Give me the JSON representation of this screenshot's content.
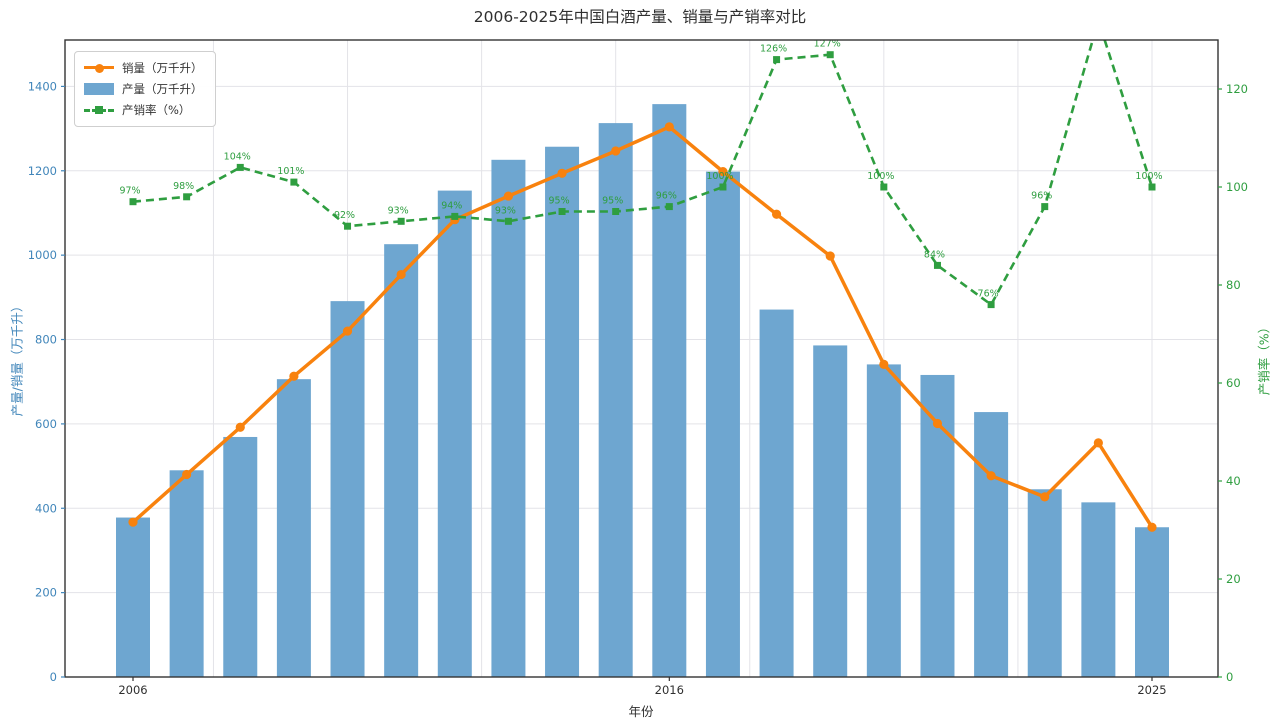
{
  "title": "2006-2025年中国白酒产量、销量与产销率对比",
  "chart_data": {
    "type": "bar",
    "subtype": "dual-axis bar + two lines",
    "title": "2006-2025年中国白酒产量、销量与产销率对比",
    "xlabel": "年份",
    "ylabel_left": "产量/销量（万千升）",
    "ylabel_right": "产销率（%）",
    "x": [
      2006,
      2007,
      2008,
      2009,
      2010,
      2011,
      2012,
      2013,
      2014,
      2015,
      2016,
      2017,
      2018,
      2019,
      2020,
      2021,
      2022,
      2023,
      2024,
      2025
    ],
    "x_tick_labels": [
      "2006",
      "2016",
      "2025"
    ],
    "x_tick_years": [
      2006,
      2016,
      2025
    ],
    "x_gridline_years": [
      2007.5,
      2010,
      2012.5,
      2015,
      2017.5,
      2020,
      2022.5,
      2025
    ],
    "left_axis": {
      "ticks": [
        0,
        200,
        400,
        600,
        800,
        1000,
        1200,
        1400
      ],
      "ylim": [
        0,
        1510
      ],
      "color": "#4186ba"
    },
    "right_axis": {
      "ticks": [
        0,
        20,
        40,
        60,
        80,
        100,
        120
      ],
      "ylim": [
        0,
        130
      ],
      "color": "#2f9e40"
    },
    "grid": true,
    "legend_position": "upper-left",
    "series": [
      {
        "name": "销量（万千升）",
        "type": "line",
        "axis": "left",
        "color": "#f8820e",
        "marker": "circle",
        "values": [
          367,
          480,
          592,
          713,
          820,
          954,
          1084,
          1140,
          1194,
          1247,
          1304,
          1198,
          1097,
          998,
          741,
          601,
          477,
          427,
          555,
          355
        ]
      },
      {
        "name": "产量（万千升）",
        "type": "bar",
        "axis": "left",
        "color": "#6ea6d0",
        "values": [
          378,
          490,
          569,
          706,
          891,
          1026,
          1153,
          1226,
          1257,
          1313,
          1358,
          1198,
          871,
          786,
          741,
          716,
          628,
          445,
          414,
          355
        ]
      },
      {
        "name": "产销率（%）",
        "type": "line",
        "axis": "right",
        "color": "#2f9e40",
        "marker": "square",
        "dashed": true,
        "values": [
          97,
          98,
          104,
          101,
          92,
          93,
          94,
          93,
          95,
          95,
          96,
          100,
          126,
          127,
          100,
          84,
          76,
          96,
          134,
          100
        ],
        "labels": [
          "97%",
          "98%",
          "104%",
          "101%",
          "92%",
          "93%",
          "94%",
          "93%",
          "95%",
          "95%",
          "96%",
          "100%",
          "126%",
          "127%",
          "100%",
          "84%",
          "76%",
          "96%",
          "",
          "100%"
        ],
        "clipped_indices": [
          18
        ]
      }
    ]
  },
  "colors": {
    "bar": "#6ea6d0",
    "sales_line": "#f8820e",
    "ratio_line": "#2f9e40",
    "left_tick": "#4186ba",
    "right_tick": "#2f9e40",
    "grid": "#e3e3e8",
    "spine": "#333333",
    "text": "#2f2f2f"
  }
}
